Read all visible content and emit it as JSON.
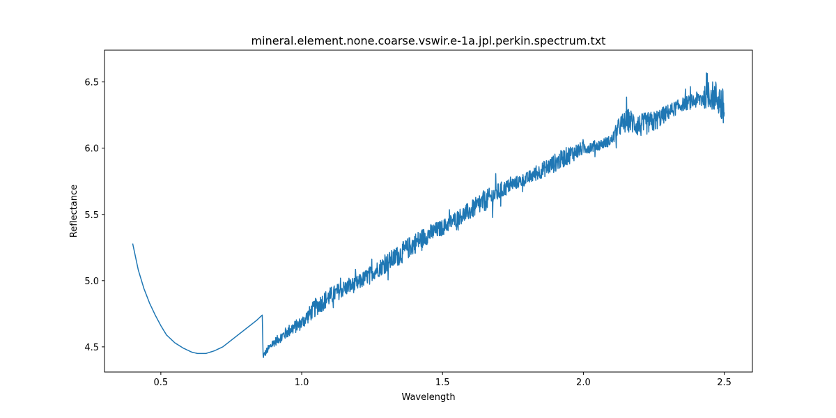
{
  "chart_data": {
    "type": "line",
    "title": "mineral.element.none.coarse.vswir.e-1a.jpl.perkin.spectrum.txt",
    "xlabel": "Wavelength",
    "ylabel": "Reflectance",
    "xlim": [
      0.3,
      2.6
    ],
    "ylim": [
      4.31,
      6.74
    ],
    "xticks": [
      0.5,
      1.0,
      1.5,
      2.0,
      2.5
    ],
    "xtick_labels": [
      "0.5",
      "1.0",
      "1.5",
      "2.0",
      "2.5"
    ],
    "yticks": [
      4.5,
      5.0,
      5.5,
      6.0,
      6.5
    ],
    "ytick_labels": [
      "4.5",
      "5.0",
      "5.5",
      "6.0",
      "6.5"
    ],
    "grid": false,
    "legend": "none",
    "series": [
      {
        "color": "#1f77b4",
        "x": [
          0.4,
          0.42,
          0.44,
          0.46,
          0.48,
          0.5,
          0.52,
          0.55,
          0.58,
          0.61,
          0.63,
          0.66,
          0.69,
          0.72,
          0.75,
          0.78,
          0.81,
          0.84,
          0.86,
          0.863,
          0.88,
          0.9,
          0.93,
          0.96,
          1.0,
          1.05,
          1.1,
          1.15,
          1.2,
          1.25,
          1.3,
          1.35,
          1.4,
          1.45,
          1.5,
          1.55,
          1.6,
          1.65,
          1.7,
          1.75,
          1.8,
          1.85,
          1.9,
          1.95,
          2.0,
          2.05,
          2.1,
          2.13,
          2.16,
          2.2,
          2.25,
          2.3,
          2.35,
          2.4,
          2.45,
          2.48,
          2.5
        ],
        "y": [
          5.28,
          5.08,
          4.94,
          4.83,
          4.74,
          4.66,
          4.59,
          4.53,
          4.49,
          4.46,
          4.45,
          4.45,
          4.47,
          4.5,
          4.55,
          4.6,
          4.65,
          4.7,
          4.74,
          4.43,
          4.48,
          4.53,
          4.58,
          4.63,
          4.68,
          4.8,
          4.88,
          4.94,
          4.98,
          5.06,
          5.13,
          5.2,
          5.28,
          5.35,
          5.4,
          5.47,
          5.53,
          5.6,
          5.67,
          5.73,
          5.77,
          5.83,
          5.89,
          5.95,
          6.0,
          6.02,
          6.06,
          6.17,
          6.21,
          6.17,
          6.2,
          6.27,
          6.33,
          6.36,
          6.4,
          6.38,
          6.27
        ],
        "noise": [
          0,
          0,
          0,
          0,
          0,
          0,
          0,
          0,
          0,
          0,
          0,
          0,
          0,
          0,
          0,
          0,
          0,
          0,
          0,
          0.02,
          0.03,
          0.03,
          0.04,
          0.05,
          0.05,
          0.07,
          0.07,
          0.06,
          0.06,
          0.06,
          0.07,
          0.08,
          0.08,
          0.07,
          0.06,
          0.06,
          0.07,
          0.08,
          0.07,
          0.05,
          0.05,
          0.06,
          0.07,
          0.07,
          0.05,
          0.04,
          0.04,
          0.08,
          0.09,
          0.09,
          0.08,
          0.06,
          0.05,
          0.06,
          0.1,
          0.14,
          0.16
        ]
      }
    ]
  }
}
